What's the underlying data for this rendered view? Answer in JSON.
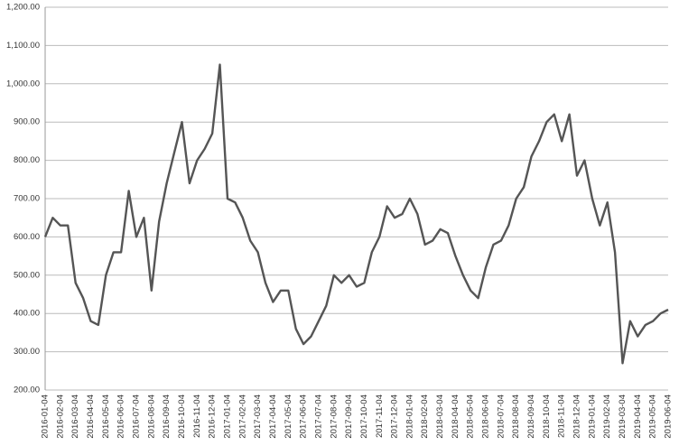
{
  "chart_data": {
    "type": "line",
    "categories": [
      "2016-01-04",
      null,
      "2016-02-04",
      null,
      "2016-03-04",
      null,
      "2016-04-04",
      null,
      "2016-05-04",
      null,
      "2016-06-04",
      null,
      "2016-07-04",
      null,
      "2016-08-04",
      null,
      "2016-09-04",
      null,
      "2016-10-04",
      null,
      "2016-11-04",
      null,
      "2016-12-04",
      null,
      "2017-01-04",
      null,
      "2017-02-04",
      null,
      "2017-03-04",
      null,
      "2017-04-04",
      null,
      "2017-05-04",
      null,
      "2017-06-04",
      null,
      "2017-07-04",
      null,
      "2017-08-04",
      null,
      "2017-09-04",
      null,
      "2017-10-04",
      null,
      "2017-11-04",
      null,
      "2017-12-04",
      null,
      "2018-01-04",
      null,
      "2018-02-04",
      null,
      "2018-03-04",
      null,
      "2018-04-04",
      null,
      "2018-05-04",
      null,
      "2018-06-04",
      null,
      "2018-07-04",
      null,
      "2018-08-04",
      null,
      "2018-09-04",
      null,
      "2018-10-04",
      null,
      "2018-11-04",
      null,
      "2018-12-04",
      null,
      "2019-01-04",
      null,
      "2019-02-04",
      null,
      "2019-03-04",
      null,
      "2019-04-04",
      null,
      "2019-05-04",
      null,
      "2019-06-04"
    ],
    "series": [
      {
        "color": "#555555",
        "values": [
          600,
          650,
          630,
          630,
          480,
          440,
          380,
          370,
          500,
          560,
          560,
          720,
          600,
          650,
          460,
          640,
          740,
          820,
          900,
          740,
          800,
          830,
          870,
          1050,
          700,
          690,
          650,
          590,
          560,
          480,
          430,
          460,
          460,
          360,
          320,
          340,
          380,
          420,
          500,
          480,
          500,
          470,
          480,
          560,
          600,
          680,
          650,
          660,
          700,
          660,
          580,
          590,
          620,
          610,
          550,
          500,
          460,
          440,
          520,
          580,
          590,
          630,
          700,
          730,
          810,
          850,
          900,
          920,
          850,
          920,
          760,
          800,
          700,
          630,
          690,
          560,
          270,
          380,
          340,
          370,
          380,
          400,
          410
        ]
      }
    ],
    "ylim": [
      200,
      1200
    ],
    "yticks": [
      {
        "value": 200,
        "label": "200.00"
      },
      {
        "value": 300,
        "label": "300.00"
      },
      {
        "value": 400,
        "label": "400.00"
      },
      {
        "value": 500,
        "label": "500.00"
      },
      {
        "value": 600,
        "label": "600.00"
      },
      {
        "value": 700,
        "label": "700.00"
      },
      {
        "value": 800,
        "label": "800.00"
      },
      {
        "value": 900,
        "label": "900.00"
      },
      {
        "value": 1000,
        "label": "1,000.00"
      },
      {
        "value": 1100,
        "label": "1,100.00"
      },
      {
        "value": 1200,
        "label": "1,200.00"
      }
    ],
    "grid": true
  }
}
